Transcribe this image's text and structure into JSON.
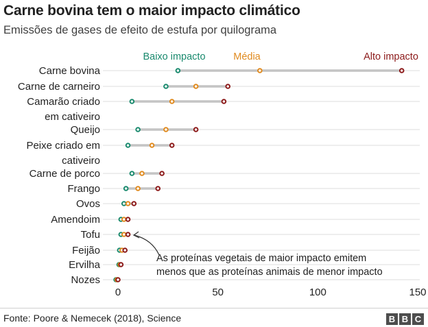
{
  "header": {
    "title": "Carne bovina tem o maior impacto climático",
    "subtitle": "Emissões de gases de efeito de estufa por quilograma"
  },
  "footer": {
    "source": "Fonte: Poore & Nemecek (2018), Science",
    "logo_letters": [
      "B",
      "B",
      "C"
    ]
  },
  "colors": {
    "low": "#1a8a6e",
    "mid": "#e08a1e",
    "high": "#8c1a1a",
    "range_line": "#c4c4c4",
    "grid": "#dcdcdc"
  },
  "chart_data": {
    "type": "scatter",
    "title": "Carne bovina tem o maior impacto climático",
    "subtitle": "Emissões de gases de efeito de estufa por quilograma",
    "xlim": [
      0,
      150
    ],
    "xticks": [
      0,
      50,
      100,
      150
    ],
    "grid": "horizontal",
    "legend": [
      {
        "key": "low",
        "label": "Baixo impacto"
      },
      {
        "key": "mid",
        "label": "Média"
      },
      {
        "key": "high",
        "label": "Alto impacto"
      }
    ],
    "legend_position": "top",
    "categories": [
      {
        "lines": [
          "Carne bovina"
        ],
        "low": 30,
        "mid": 71,
        "high": 142
      },
      {
        "lines": [
          "Carne de carneiro"
        ],
        "low": 24,
        "mid": 39,
        "high": 55
      },
      {
        "lines": [
          "Camarão criado",
          "em cativeiro"
        ],
        "low": 7,
        "mid": 27,
        "high": 53
      },
      {
        "lines": [
          "Queijo"
        ],
        "low": 10,
        "mid": 24,
        "high": 39
      },
      {
        "lines": [
          "Peixe criado em",
          "cativeiro"
        ],
        "low": 5,
        "mid": 17,
        "high": 27
      },
      {
        "lines": [
          "Carne de porco"
        ],
        "low": 7,
        "mid": 12,
        "high": 22
      },
      {
        "lines": [
          "Frango"
        ],
        "low": 4,
        "mid": 10,
        "high": 20
      },
      {
        "lines": [
          "Ovos"
        ],
        "low": 3,
        "mid": 5,
        "high": 8
      },
      {
        "lines": [
          "Amendoim"
        ],
        "low": 1.5,
        "mid": 3,
        "high": 5
      },
      {
        "lines": [
          "Tofu"
        ],
        "low": 1.5,
        "mid": 3,
        "high": 5
      },
      {
        "lines": [
          "Feijão"
        ],
        "low": 0.8,
        "mid": 2,
        "high": 3.5
      },
      {
        "lines": [
          "Ervilha"
        ],
        "low": 0.5,
        "mid": 1,
        "high": 1.5
      },
      {
        "lines": [
          "Nozes"
        ],
        "low": -1,
        "mid": -0.5,
        "high": 0
      }
    ],
    "annotation": {
      "target": "Tofu",
      "lines": [
        "As proteínas vegetais de maior impacto emitem",
        "menos que as proteínas animais de menor impacto"
      ]
    }
  }
}
